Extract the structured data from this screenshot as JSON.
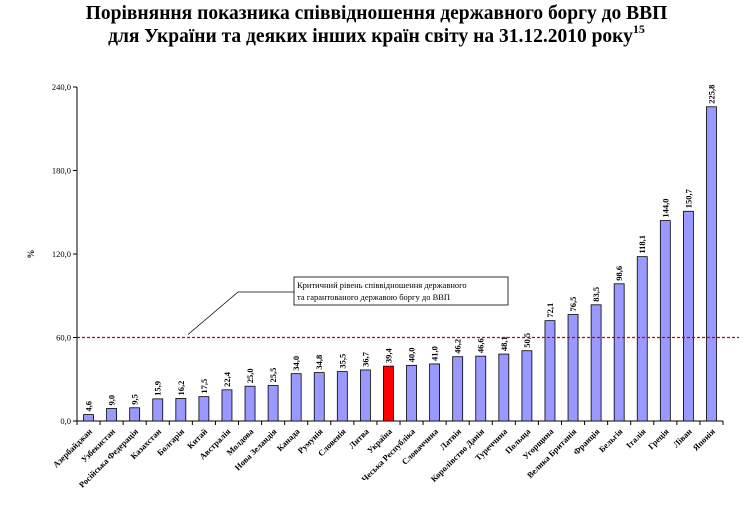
{
  "chart_data": {
    "type": "bar",
    "title_line1": "Порівняння показника співвідношення державного боргу до ВВП",
    "title_line2": "для України та деяких інших країн світу на 31.12.2010 року",
    "title_footnote": "15",
    "ylabel": "%",
    "ylim": [
      0,
      240
    ],
    "yticks": [
      "0,0",
      "60,0",
      "120,0",
      "180,0",
      "240,0"
    ],
    "ytick_values": [
      0,
      60,
      120,
      180,
      240
    ],
    "grid": false,
    "categories": [
      "Азербайджан",
      "Узбекистан",
      "Російська Федерація",
      "Казахстан",
      "Болгарія",
      "Китай",
      "Австралія",
      "Молдова",
      "Нова Зеландія",
      "Канада",
      "Румунія",
      "Словенія",
      "Литва",
      "Україна",
      "Чеська Республіка",
      "Словаччина",
      "Латвія",
      "Королівство Данія",
      "Туреччина",
      "Польща",
      "Угорщина",
      "Велика Британія",
      "Франція",
      "Бельгія",
      "Італія",
      "Греція",
      "Ліван",
      "Японія"
    ],
    "values": [
      4.6,
      9.0,
      9.5,
      15.9,
      16.2,
      17.5,
      22.4,
      25.0,
      25.5,
      34.0,
      34.8,
      35.5,
      36.7,
      39.4,
      40.0,
      41.0,
      46.2,
      46.6,
      48.1,
      50.5,
      72.1,
      76.5,
      83.5,
      98.6,
      118.1,
      144.0,
      150.7,
      225.8
    ],
    "value_labels": [
      "4,6",
      "9,0",
      "9,5",
      "15,9",
      "16,2",
      "17,5",
      "22,4",
      "25,0",
      "25,5",
      "34,0",
      "34,8",
      "35,5",
      "36,7",
      "39,4",
      "40,0",
      "41,0",
      "46,2",
      "46,6",
      "48,1",
      "50,5",
      "72,1",
      "76,5",
      "83,5",
      "98,6",
      "118,1",
      "144,0",
      "150,7",
      "225,8"
    ],
    "highlight_category": "Україна",
    "bar_color": "#9999ff",
    "highlight_color": "#ff0000",
    "threshold": {
      "value": 60,
      "color": "#cc0000",
      "label_line1": "Критичний рівень співвідношення державного",
      "label_line2": "та гарантованого державою боргу до ВВП"
    }
  }
}
